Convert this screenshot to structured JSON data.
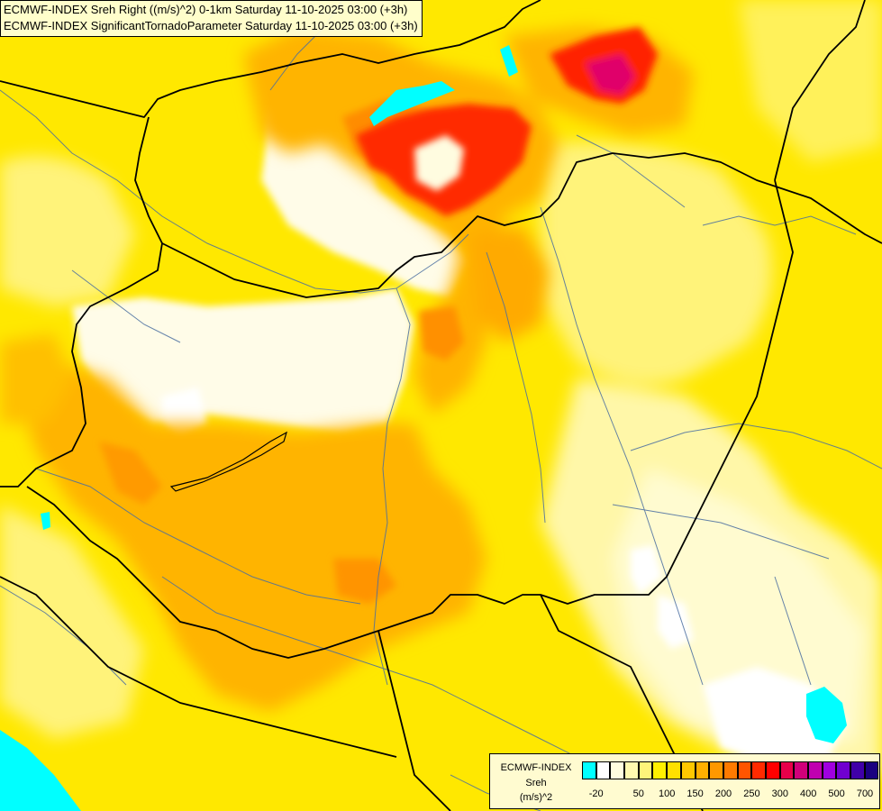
{
  "title": {
    "line1": "ECMWF-INDEX Sreh Right ((m/s)^2) 0-1km Saturday 11-10-2025 03:00 (+3h)",
    "line2": "ECMWF-INDEX SignificantTornadoParameter Saturday 11-10-2025 03:00 (+3h)"
  },
  "legend": {
    "model": "ECMWF-INDEX",
    "parameter": "Sreh",
    "unit": "(m/s)^2",
    "colors": [
      "#00ffff",
      "#ffffff",
      "#fffde0",
      "#fff9b0",
      "#fff47a",
      "#fff000",
      "#ffe000",
      "#ffc800",
      "#ffb000",
      "#ff9800",
      "#ff7a00",
      "#ff5500",
      "#ff2a00",
      "#ff0000",
      "#e8004a",
      "#d0007a",
      "#c000b0",
      "#a000e0",
      "#7000d0",
      "#4000a8",
      "#1a0080"
    ],
    "ticks": [
      "-20",
      "50",
      "100",
      "150",
      "200",
      "250",
      "300",
      "400",
      "500",
      "700"
    ]
  }
}
